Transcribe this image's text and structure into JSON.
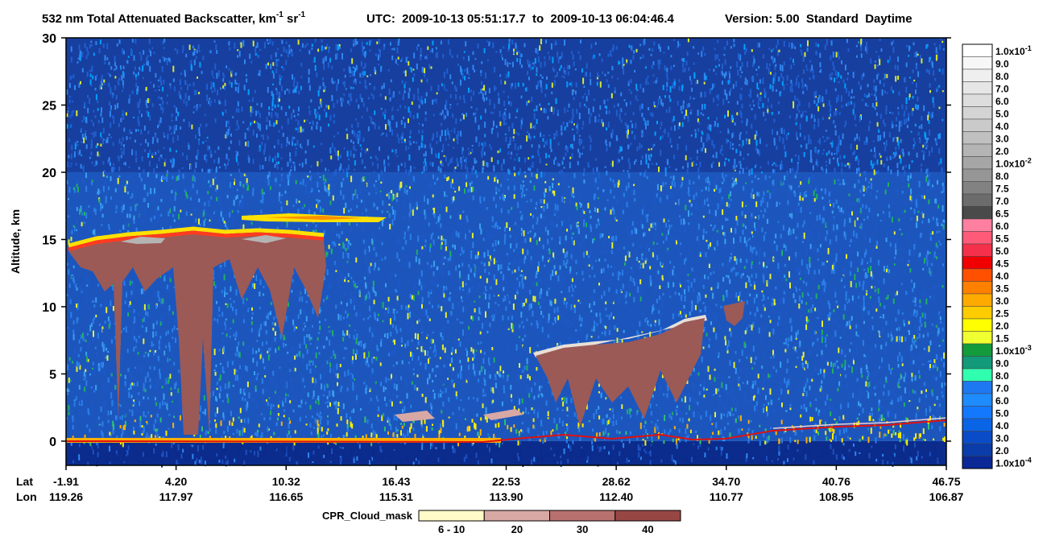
{
  "chart_data": {
    "type": "heatmap",
    "title": {
      "text1": "532 nm Total Attenuated Backscatter, km",
      "sup1": "-1",
      "text2": " sr",
      "sup2": "-1",
      "utc": "UTC:  2009-10-13 05:51:17.7  to  2009-10-13 06:04:46.4",
      "version": "Version: 5.00  Standard  Daytime"
    },
    "ylabel": "Altitude, km",
    "ylim": [
      -1.8,
      30
    ],
    "yticks": [
      0,
      5,
      10,
      15,
      20,
      25,
      30
    ],
    "x_axis": {
      "rows": [
        {
          "name": "Lat",
          "labels": [
            "-1.91",
            "4.20",
            "10.32",
            "16.43",
            "22.53",
            "28.62",
            "34.70",
            "40.76",
            "46.75"
          ]
        },
        {
          "name": "Lon",
          "labels": [
            "119.26",
            "117.97",
            "116.65",
            "115.31",
            "113.90",
            "112.40",
            "110.77",
            "108.95",
            "106.87"
          ]
        }
      ]
    },
    "colorbar": [
      {
        "label": "1.0x10",
        "sup": "-1",
        "color": "#ffffff"
      },
      {
        "label": "9.0",
        "color": "#f7f7f7"
      },
      {
        "label": "8.0",
        "color": "#efefef"
      },
      {
        "label": "7.0",
        "color": "#e6e6e6"
      },
      {
        "label": "6.0",
        "color": "#dddddd"
      },
      {
        "label": "5.0",
        "color": "#d4d4d4"
      },
      {
        "label": "4.0",
        "color": "#cacaca"
      },
      {
        "label": "3.0",
        "color": "#c0c0c0"
      },
      {
        "label": "2.0",
        "color": "#b4b4b4"
      },
      {
        "label": "1.0x10",
        "sup": "-2",
        "color": "#a6a6a6"
      },
      {
        "label": "8.0",
        "color": "#969696"
      },
      {
        "label": "7.5",
        "color": "#828282"
      },
      {
        "label": "7.0",
        "color": "#6c6c6c"
      },
      {
        "label": "6.5",
        "color": "#4a4a4a"
      },
      {
        "label": "6.0",
        "color": "#ff7fa0"
      },
      {
        "label": "5.5",
        "color": "#ff5a78"
      },
      {
        "label": "5.0",
        "color": "#f5304a"
      },
      {
        "label": "4.5",
        "color": "#f00000"
      },
      {
        "label": "4.0",
        "color": "#ff5000"
      },
      {
        "label": "3.5",
        "color": "#ff8000"
      },
      {
        "label": "3.0",
        "color": "#ffaa00"
      },
      {
        "label": "2.5",
        "color": "#ffcc00"
      },
      {
        "label": "2.0",
        "color": "#ffff00"
      },
      {
        "label": "1.5",
        "color": "#f0ff30"
      },
      {
        "label": "1.0x10",
        "sup": "-3",
        "color": "#149b3c"
      },
      {
        "label": "9.0",
        "color": "#139a7a"
      },
      {
        "label": "8.0",
        "color": "#30ffb0"
      },
      {
        "label": "7.0",
        "color": "#1e78f0"
      },
      {
        "label": "6.0",
        "color": "#1e8cff"
      },
      {
        "label": "5.0",
        "color": "#1478ff"
      },
      {
        "label": "4.0",
        "color": "#0a64e6"
      },
      {
        "label": "3.0",
        "color": "#0a4cc8"
      },
      {
        "label": "2.0",
        "color": "#0a3caa"
      },
      {
        "label": "1.0x10",
        "sup": "-4",
        "color": "#0a2896"
      }
    ],
    "cloud_mask": {
      "title": "CPR_Cloud_mask",
      "levels": [
        {
          "label": "6 - 10",
          "color": "#fffac8"
        },
        {
          "label": "20",
          "color": "#d8a8a5"
        },
        {
          "label": "30",
          "color": "#b8716f"
        },
        {
          "label": "40",
          "color": "#984644"
        }
      ]
    }
  }
}
